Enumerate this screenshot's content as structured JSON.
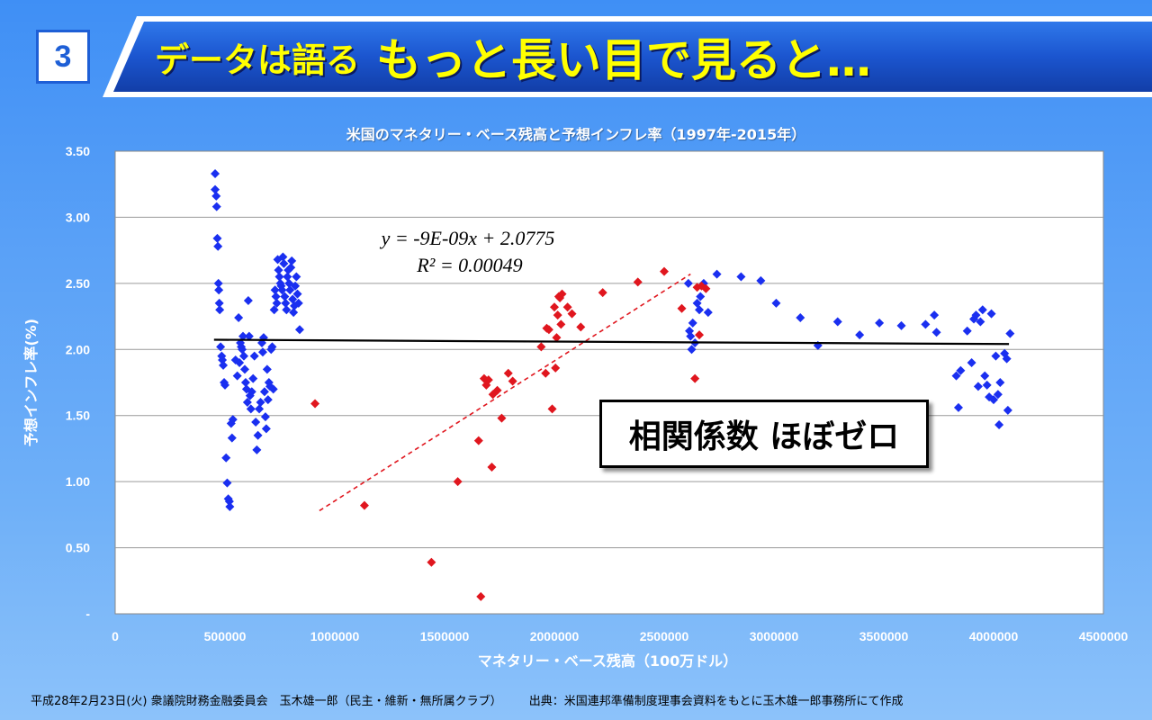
{
  "slide": {
    "number": "3",
    "heading_small": "データは語る",
    "heading_big": "もっと長い目で見ると…",
    "footer_left": "平成28年2月23日(火) 衆議院財務金融委員会　玉木雄一郎（民主・維新・無所属クラブ）",
    "footer_right": "出典：米国連邦準備制度理事会資料をもとに玉木雄一郎事務所にて作成",
    "callout": "相関係数 ほぼゼロ",
    "colors": {
      "heading": "#ffff00",
      "banner": "#1e5fd6",
      "blue_points": "#1a2ff0",
      "red_points": "#e0161e"
    }
  },
  "chart_data": {
    "type": "scatter",
    "title": "米国のマネタリー・ベース残高と予想インフレ率（1997年-2015年）",
    "xlabel": "マネタリー・ベース残高（100万ドル）",
    "ylabel": "予想インフレ率(%)",
    "xlim": [
      0,
      4500000
    ],
    "ylim": [
      0,
      3.5
    ],
    "xticks": [
      "0",
      "500000",
      "1000000",
      "1500000",
      "2000000",
      "2500000",
      "3000000",
      "3500000",
      "4000000",
      "4500000"
    ],
    "yticks": [
      "-",
      "0.50",
      "1.00",
      "1.50",
      "2.00",
      "2.50",
      "3.00",
      "3.50"
    ],
    "grid": "horizontal",
    "equation_line1": "y = -9E-09x + 2.0775",
    "equation_line2": "R² = 0.00049",
    "trendline": {
      "slope": -9e-09,
      "intercept": 2.0775,
      "x_range": [
        450000,
        4070000
      ]
    },
    "red_trendline": {
      "points": [
        [
          930000,
          0.78
        ],
        [
          2620000,
          2.57
        ]
      ]
    },
    "series": [
      {
        "color": "#1a2ff0",
        "points": [
          [
            455000,
            3.33
          ],
          [
            455000,
            3.21
          ],
          [
            460000,
            3.16
          ],
          [
            462000,
            3.08
          ],
          [
            465000,
            2.84
          ],
          [
            468000,
            2.78
          ],
          [
            470000,
            2.5
          ],
          [
            472000,
            2.45
          ],
          [
            474000,
            2.35
          ],
          [
            476000,
            2.3
          ],
          [
            480000,
            2.02
          ],
          [
            485000,
            1.95
          ],
          [
            488000,
            1.92
          ],
          [
            492000,
            1.88
          ],
          [
            496000,
            1.75
          ],
          [
            500000,
            1.73
          ],
          [
            505000,
            1.18
          ],
          [
            510000,
            0.99
          ],
          [
            515000,
            0.87
          ],
          [
            520000,
            0.85
          ],
          [
            522000,
            0.81
          ],
          [
            528000,
            1.44
          ],
          [
            532000,
            1.33
          ],
          [
            536000,
            1.47
          ],
          [
            548000,
            1.92
          ],
          [
            556000,
            1.8
          ],
          [
            562000,
            2.24
          ],
          [
            566000,
            1.9
          ],
          [
            570000,
            2.05
          ],
          [
            574000,
            2.02
          ],
          [
            578000,
            2.0
          ],
          [
            582000,
            2.1
          ],
          [
            586000,
            1.95
          ],
          [
            590000,
            1.85
          ],
          [
            594000,
            1.75
          ],
          [
            598000,
            1.7
          ],
          [
            602000,
            1.6
          ],
          [
            606000,
            2.37
          ],
          [
            610000,
            2.1
          ],
          [
            614000,
            1.65
          ],
          [
            618000,
            1.55
          ],
          [
            622000,
            1.68
          ],
          [
            628000,
            1.78
          ],
          [
            634000,
            1.95
          ],
          [
            640000,
            1.45
          ],
          [
            645000,
            1.24
          ],
          [
            650000,
            1.35
          ],
          [
            656000,
            1.55
          ],
          [
            662000,
            1.6
          ],
          [
            668000,
            2.05
          ],
          [
            672000,
            1.98
          ],
          [
            676000,
            2.09
          ],
          [
            680000,
            1.68
          ],
          [
            684000,
            1.49
          ],
          [
            688000,
            1.4
          ],
          [
            692000,
            1.85
          ],
          [
            696000,
            1.62
          ],
          [
            700000,
            1.75
          ],
          [
            705000,
            1.72
          ],
          [
            710000,
            2.0
          ],
          [
            715000,
            2.02
          ],
          [
            720000,
            1.7
          ],
          [
            724000,
            2.3
          ],
          [
            728000,
            2.45
          ],
          [
            732000,
            2.4
          ],
          [
            736000,
            2.35
          ],
          [
            740000,
            2.68
          ],
          [
            744000,
            2.6
          ],
          [
            748000,
            2.55
          ],
          [
            752000,
            2.5
          ],
          [
            756000,
            2.48
          ],
          [
            760000,
            2.45
          ],
          [
            764000,
            2.7
          ],
          [
            768000,
            2.65
          ],
          [
            772000,
            2.4
          ],
          [
            776000,
            2.35
          ],
          [
            780000,
            2.3
          ],
          [
            784000,
            2.55
          ],
          [
            788000,
            2.6
          ],
          [
            792000,
            2.5
          ],
          [
            796000,
            2.45
          ],
          [
            800000,
            2.62
          ],
          [
            804000,
            2.67
          ],
          [
            808000,
            2.38
          ],
          [
            812000,
            2.28
          ],
          [
            816000,
            2.33
          ],
          [
            820000,
            2.48
          ],
          [
            825000,
            2.55
          ],
          [
            830000,
            2.42
          ],
          [
            835000,
            2.35
          ],
          [
            840000,
            2.15
          ],
          [
            2610000,
            2.5
          ],
          [
            2615000,
            2.14
          ],
          [
            2620000,
            2.1
          ],
          [
            2625000,
            2.0
          ],
          [
            2630000,
            2.2
          ],
          [
            2640000,
            2.05
          ],
          [
            2650000,
            2.35
          ],
          [
            2660000,
            2.3
          ],
          [
            2665000,
            2.4
          ],
          [
            2680000,
            2.5
          ],
          [
            2700000,
            2.28
          ],
          [
            2740000,
            2.57
          ],
          [
            2850000,
            2.55
          ],
          [
            2940000,
            2.52
          ],
          [
            3010000,
            2.35
          ],
          [
            3120000,
            2.24
          ],
          [
            3200000,
            2.03
          ],
          [
            3290000,
            2.21
          ],
          [
            3390000,
            2.11
          ],
          [
            3480000,
            2.2
          ],
          [
            3580000,
            2.18
          ],
          [
            3690000,
            2.19
          ],
          [
            3730000,
            2.26
          ],
          [
            3740000,
            2.13
          ],
          [
            3830000,
            1.8
          ],
          [
            3840000,
            1.56
          ],
          [
            3850000,
            1.84
          ],
          [
            3880000,
            2.14
          ],
          [
            3900000,
            1.9
          ],
          [
            3910000,
            2.23
          ],
          [
            3920000,
            2.26
          ],
          [
            3930000,
            1.72
          ],
          [
            3940000,
            2.21
          ],
          [
            3950000,
            2.3
          ],
          [
            3960000,
            1.8
          ],
          [
            3970000,
            1.73
          ],
          [
            3980000,
            1.64
          ],
          [
            3990000,
            2.27
          ],
          [
            4000000,
            1.62
          ],
          [
            4010000,
            1.95
          ],
          [
            4020000,
            1.66
          ],
          [
            4025000,
            1.43
          ],
          [
            4030000,
            1.75
          ],
          [
            4050000,
            1.97
          ],
          [
            4060000,
            1.93
          ],
          [
            4065000,
            1.54
          ],
          [
            4075000,
            2.12
          ]
        ]
      },
      {
        "color": "#e0161e",
        "points": [
          [
            910000,
            1.59
          ],
          [
            1135000,
            0.82
          ],
          [
            1440000,
            0.39
          ],
          [
            1560000,
            1.0
          ],
          [
            1655000,
            1.31
          ],
          [
            1665000,
            0.13
          ],
          [
            1680000,
            1.78
          ],
          [
            1690000,
            1.73
          ],
          [
            1700000,
            1.77
          ],
          [
            1715000,
            1.11
          ],
          [
            1720000,
            1.66
          ],
          [
            1740000,
            1.69
          ],
          [
            1760000,
            1.48
          ],
          [
            1790000,
            1.82
          ],
          [
            1810000,
            1.76
          ],
          [
            1940000,
            2.02
          ],
          [
            1960000,
            1.82
          ],
          [
            1965000,
            2.16
          ],
          [
            1975000,
            2.15
          ],
          [
            1990000,
            1.55
          ],
          [
            2000000,
            2.32
          ],
          [
            2005000,
            1.86
          ],
          [
            2010000,
            2.09
          ],
          [
            2015000,
            2.26
          ],
          [
            2020000,
            2.4
          ],
          [
            2025000,
            2.39
          ],
          [
            2030000,
            2.19
          ],
          [
            2035000,
            2.42
          ],
          [
            2060000,
            2.32
          ],
          [
            2080000,
            2.27
          ],
          [
            2120000,
            2.17
          ],
          [
            2220000,
            2.43
          ],
          [
            2380000,
            2.51
          ],
          [
            2500000,
            2.59
          ],
          [
            2580000,
            2.31
          ],
          [
            2640000,
            1.78
          ],
          [
            2650000,
            2.47
          ],
          [
            2660000,
            2.11
          ],
          [
            2670000,
            2.48
          ],
          [
            2690000,
            2.46
          ]
        ]
      }
    ]
  }
}
